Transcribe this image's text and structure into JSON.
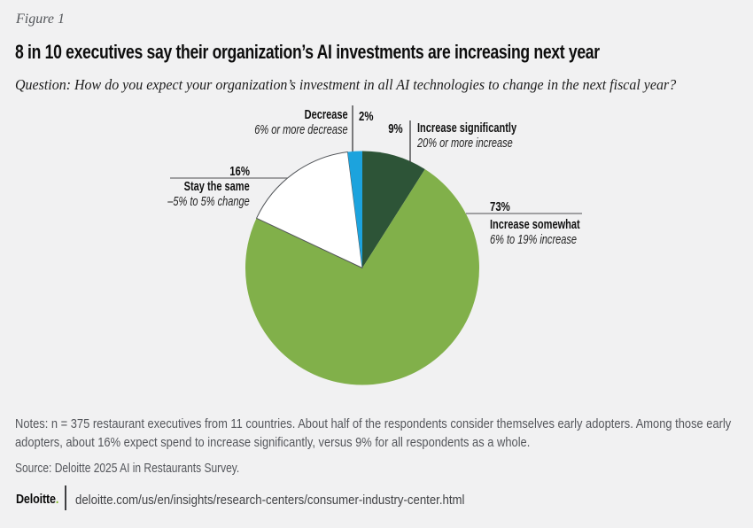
{
  "page": {
    "background": "#f1f1f2",
    "figure_label": "Figure 1",
    "title": "8 in 10 executives say their organization’s AI investments are increasing next year",
    "question": "Question: How do you expect your organization’s investment in all AI technologies to change in the next fiscal year?"
  },
  "chart_data": {
    "type": "pie",
    "unit": "percent",
    "order": "clockwise-from-top",
    "slices": [
      {
        "label": "Increase significantly",
        "sublabel": "20% or more increase",
        "value": 9,
        "display": "9%",
        "color": "#2d5437"
      },
      {
        "label": "Increase somewhat",
        "sublabel": "6% to 19% increase",
        "value": 73,
        "display": "73%",
        "color": "#81b04a"
      },
      {
        "label": "Stay the same",
        "sublabel": "–5% to 5% change",
        "value": 16,
        "display": "16%",
        "color": "#ffffff",
        "stroke": "#53565a"
      },
      {
        "label": "Decrease",
        "sublabel": "6% or more decrease",
        "value": 2,
        "display": "2%",
        "color": "#1ca3dd"
      }
    ]
  },
  "notes": {
    "notes_text": "Notes: n = 375 restaurant executives from 11 countries. About half of the respondents consider themselves early adopters. Among those early adopters, about 16% expect spend to increase significantly, versus 9% for all respondents as a whole.",
    "source_text": "Source: Deloitte 2025 AI in Restaurants Survey."
  },
  "footer": {
    "brand": "Deloitte",
    "brand_dot": ".",
    "brand_dot_color": "#86bc25",
    "url": "deloitte.com/us/en/insights/research-centers/consumer-industry-center.html"
  }
}
